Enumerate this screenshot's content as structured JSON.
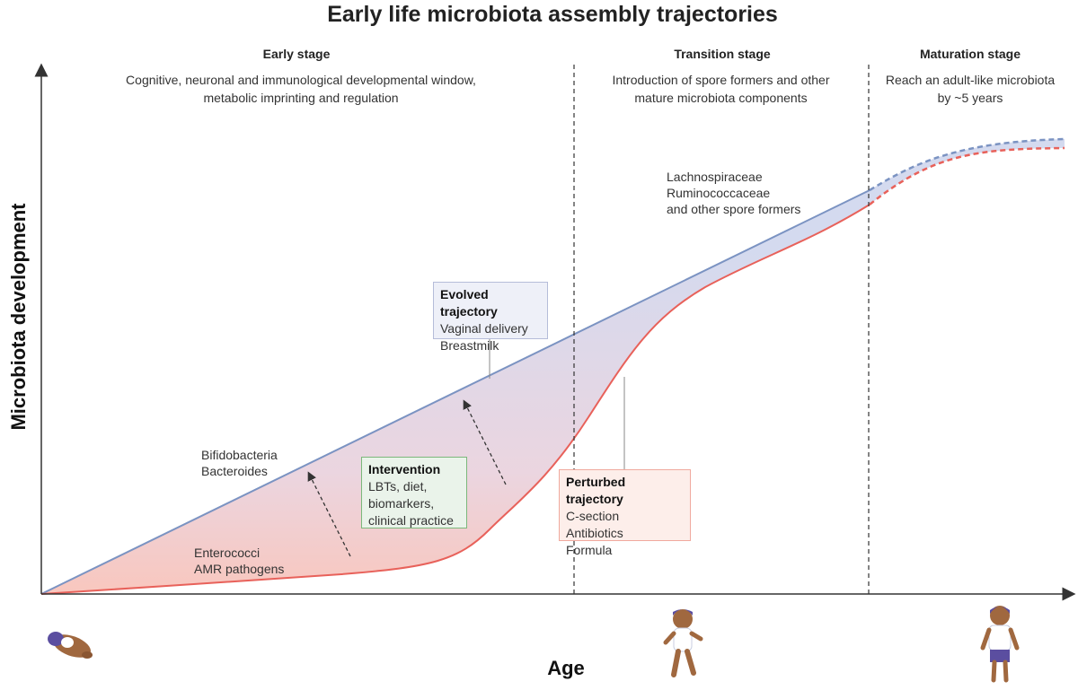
{
  "title": "Early life microbiota assembly trajectories",
  "axes": {
    "y_label": "Microbiota development",
    "x_label": "Age"
  },
  "stages": [
    {
      "name": "Early stage",
      "description_lines": [
        "Cognitive, neuronal and immunological developmental window,",
        "metabolic imprinting and regulation"
      ]
    },
    {
      "name": "Transition stage",
      "description_lines": [
        "Introduction of spore formers and other",
        "mature microbiota components"
      ]
    },
    {
      "name": "Maturation stage",
      "description_lines": [
        "Reach an adult-like microbiota",
        "by ~5 years"
      ]
    }
  ],
  "labels": {
    "bifidobacteria": [
      "Bifidobacteria",
      "Bacteroides"
    ],
    "enterococci": [
      "Enterococci",
      "AMR pathogens"
    ],
    "spore_formers": [
      "Lachnospiraceae",
      "Ruminococcaceae",
      "and other spore formers"
    ]
  },
  "boxes": {
    "evolved": {
      "heading": "Evolved trajectory",
      "lines": [
        "Vaginal delivery",
        "Breastmilk"
      ]
    },
    "intervention": {
      "heading": "Intervention",
      "lines": [
        "LBTs, diet,",
        "biomarkers,",
        "clinical practice"
      ]
    },
    "perturbed": {
      "heading": "Perturbed trajectory",
      "lines": [
        "C-section",
        "Antibiotics",
        "Formula"
      ]
    }
  },
  "colors": {
    "evolved_line": "#7b93c2",
    "perturbed_line": "#e8615a",
    "evolved_box_bg": "#eef0f8",
    "intervention_box_bg": "#eaf3ea",
    "intervention_box_border": "#7bb87b",
    "perturbed_box_bg": "#fdeeea",
    "perturbed_box_border": "#f0a99e",
    "skin": "#a0683f",
    "clothes_purple": "#5b4ea0"
  },
  "icons": [
    "newborn-icon",
    "toddler-icon",
    "child-icon"
  ]
}
